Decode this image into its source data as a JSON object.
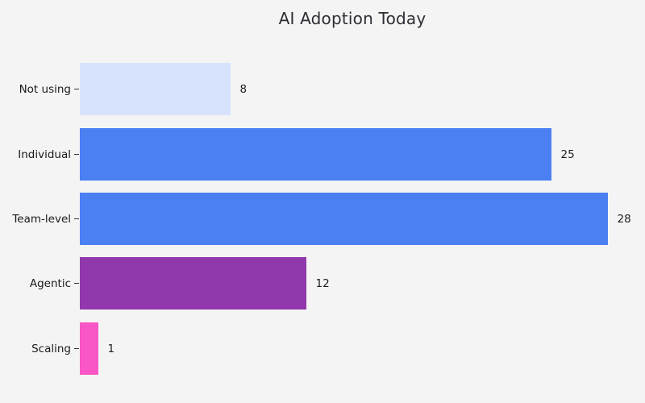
{
  "page": {
    "background": "#f4f4f4"
  },
  "chart_data": {
    "type": "bar",
    "orientation": "horizontal",
    "title": "AI Adoption Today",
    "categories": [
      "Not using",
      "Individual",
      "Team-level",
      "Agentic",
      "Scaling"
    ],
    "values": [
      8,
      25,
      28,
      12,
      1
    ],
    "value_labels": [
      "8",
      "25",
      "28",
      "12",
      "1"
    ],
    "bar_colors": [
      "#d7e3fc",
      "#4b80f3",
      "#4b80f3",
      "#9138ad",
      "#f857c5"
    ],
    "xlim": [
      0,
      29.4
    ],
    "xlabel": "",
    "ylabel": "",
    "grid": false,
    "legend": false,
    "title_color": "#2d2d35",
    "label_color": "#1a1a1a",
    "background": "#f4f4f4"
  }
}
